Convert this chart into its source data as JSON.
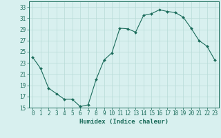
{
  "x": [
    0,
    1,
    2,
    3,
    4,
    5,
    6,
    7,
    8,
    9,
    10,
    11,
    12,
    13,
    14,
    15,
    16,
    17,
    18,
    19,
    20,
    21,
    22,
    23
  ],
  "y": [
    24,
    22,
    18.5,
    17.5,
    16.5,
    16.5,
    15.2,
    15.5,
    20,
    23.5,
    24.8,
    29.2,
    29.1,
    28.5,
    31.5,
    31.8,
    32.5,
    32.2,
    32.0,
    31.2,
    29.2,
    27.0,
    26.0,
    23.5
  ],
  "line_color": "#1a6b5a",
  "marker": "D",
  "marker_size": 2.0,
  "bg_color": "#d8f0ef",
  "grid_color": "#b8dbd8",
  "xlabel": "Humidex (Indice chaleur)",
  "xlim": [
    -0.5,
    23.5
  ],
  "ylim": [
    15,
    34
  ],
  "yticks": [
    15,
    17,
    19,
    21,
    23,
    25,
    27,
    29,
    31,
    33
  ],
  "xticks": [
    0,
    1,
    2,
    3,
    4,
    5,
    6,
    7,
    8,
    9,
    10,
    11,
    12,
    13,
    14,
    15,
    16,
    17,
    18,
    19,
    20,
    21,
    22,
    23
  ],
  "tick_color": "#1a6b5a",
  "label_fontsize": 5.5,
  "xlabel_fontsize": 6.5
}
